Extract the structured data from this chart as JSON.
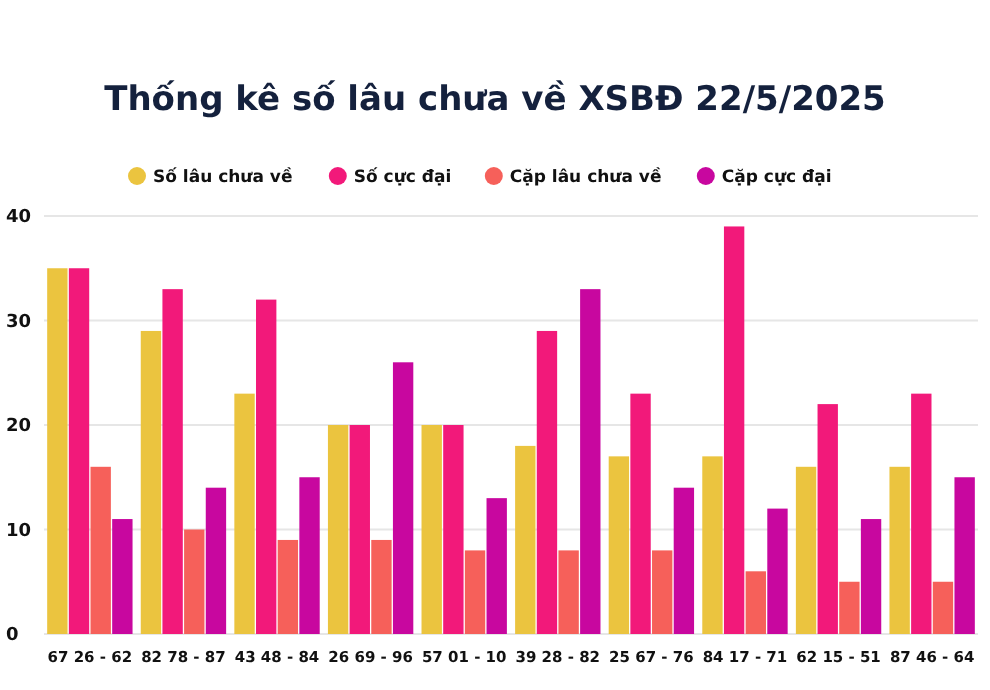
{
  "chart_data": {
    "type": "bar",
    "title": "Thống kê số lâu chưa về XSBĐ 22/5/2025",
    "categories": [
      "67 26 - 62",
      "82 78 - 87",
      "43 48 - 84",
      "26 69 - 96",
      "57 01 - 10",
      "39 28 - 82",
      "25 67 - 76",
      "84 17 - 71",
      "62 15 - 51",
      "87 46 - 64"
    ],
    "series": [
      {
        "name": "Số lâu chưa về",
        "color": "#ebc43f",
        "values": [
          35,
          29,
          23,
          20,
          20,
          18,
          17,
          17,
          16,
          16
        ]
      },
      {
        "name": "Số cực đại",
        "color": "#f2197a",
        "values": [
          35,
          33,
          32,
          20,
          20,
          29,
          23,
          39,
          22,
          23
        ]
      },
      {
        "name": "Cặp lâu chưa về",
        "color": "#f6605a",
        "values": [
          16,
          10,
          9,
          9,
          8,
          8,
          8,
          6,
          5,
          5
        ]
      },
      {
        "name": "Cặp cực đại",
        "color": "#c8079f",
        "values": [
          11,
          14,
          15,
          26,
          13,
          33,
          14,
          12,
          11,
          15
        ]
      }
    ],
    "ylim": [
      0,
      40
    ],
    "yticks": [
      0,
      10,
      20,
      30,
      40
    ],
    "grid": "y",
    "legend": "top"
  }
}
